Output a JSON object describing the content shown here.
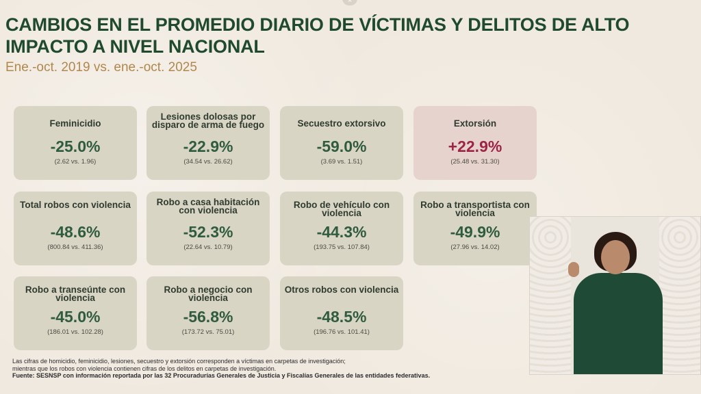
{
  "header": {
    "title": "CAMBIOS EN EL PROMEDIO DIARIO DE VÍCTIMAS Y DELITOS DE ALTO IMPACTO A NIVEL NACIONAL",
    "subtitle": "Ene.-oct. 2019 vs. ene.-oct. 2025"
  },
  "colors": {
    "title": "#1f4a2e",
    "subtitle": "#b0874d",
    "card": "#d9d5c4",
    "card_alert": "#e6d3cd",
    "decrease": "#2f5b3e",
    "increase": "#9c2447"
  },
  "cards": [
    {
      "label": "Feminicidio",
      "pct": "-25.0%",
      "cmp": "(2.62 vs. 1.96)"
    },
    {
      "label": "Lesiones dolosas por disparo de arma de fuego",
      "pct": "-22.9%",
      "cmp": "(34.54 vs. 26.62)"
    },
    {
      "label": "Secuestro extorsivo",
      "pct": "-59.0%",
      "cmp": "(3.69 vs. 1.51)"
    },
    {
      "label": "Extorsión",
      "pct": "+22.9%",
      "cmp": "(25.48 vs. 31.30)"
    },
    {
      "label": "Total robos con violencia",
      "pct": "-48.6%",
      "cmp": "(800.84 vs. 411.36)"
    },
    {
      "label": "Robo a casa habitación con violencia",
      "pct": "-52.3%",
      "cmp": "(22.64 vs. 10.79)"
    },
    {
      "label": "Robo de vehículo con violencia",
      "pct": "-44.3%",
      "cmp": "(193.75 vs. 107.84)"
    },
    {
      "label": "Robo a transportista con violencia",
      "pct": "-49.9%",
      "cmp": "(27.96 vs. 14.02)"
    },
    {
      "label": "Robo a transeúnte con violencia",
      "pct": "-45.0%",
      "cmp": "(186.01 vs. 102.28)"
    },
    {
      "label": "Robo a negocio con violencia",
      "pct": "-56.8%",
      "cmp": "(173.72 vs. 75.01)"
    },
    {
      "label": "Otros robos con violencia",
      "pct": "-48.5%",
      "cmp": "(196.76 vs. 101.41)"
    }
  ],
  "notes": {
    "line1": "Las cifras de homicidio, feminicidio, lesiones, secuestro y extorsión corresponden a víctimas en carpetas de investigación;",
    "line2": "mientras que los robos con violencia contienen cifras de los delitos en carpetas de investigación.",
    "source": "Fuente: SESNSP con información reportada por las 32 Procuradurías Generales de Justicia y Fiscalías Generales de las entidades federativas."
  },
  "top_control": {
    "icon": "close-icon",
    "glyph": "×"
  }
}
